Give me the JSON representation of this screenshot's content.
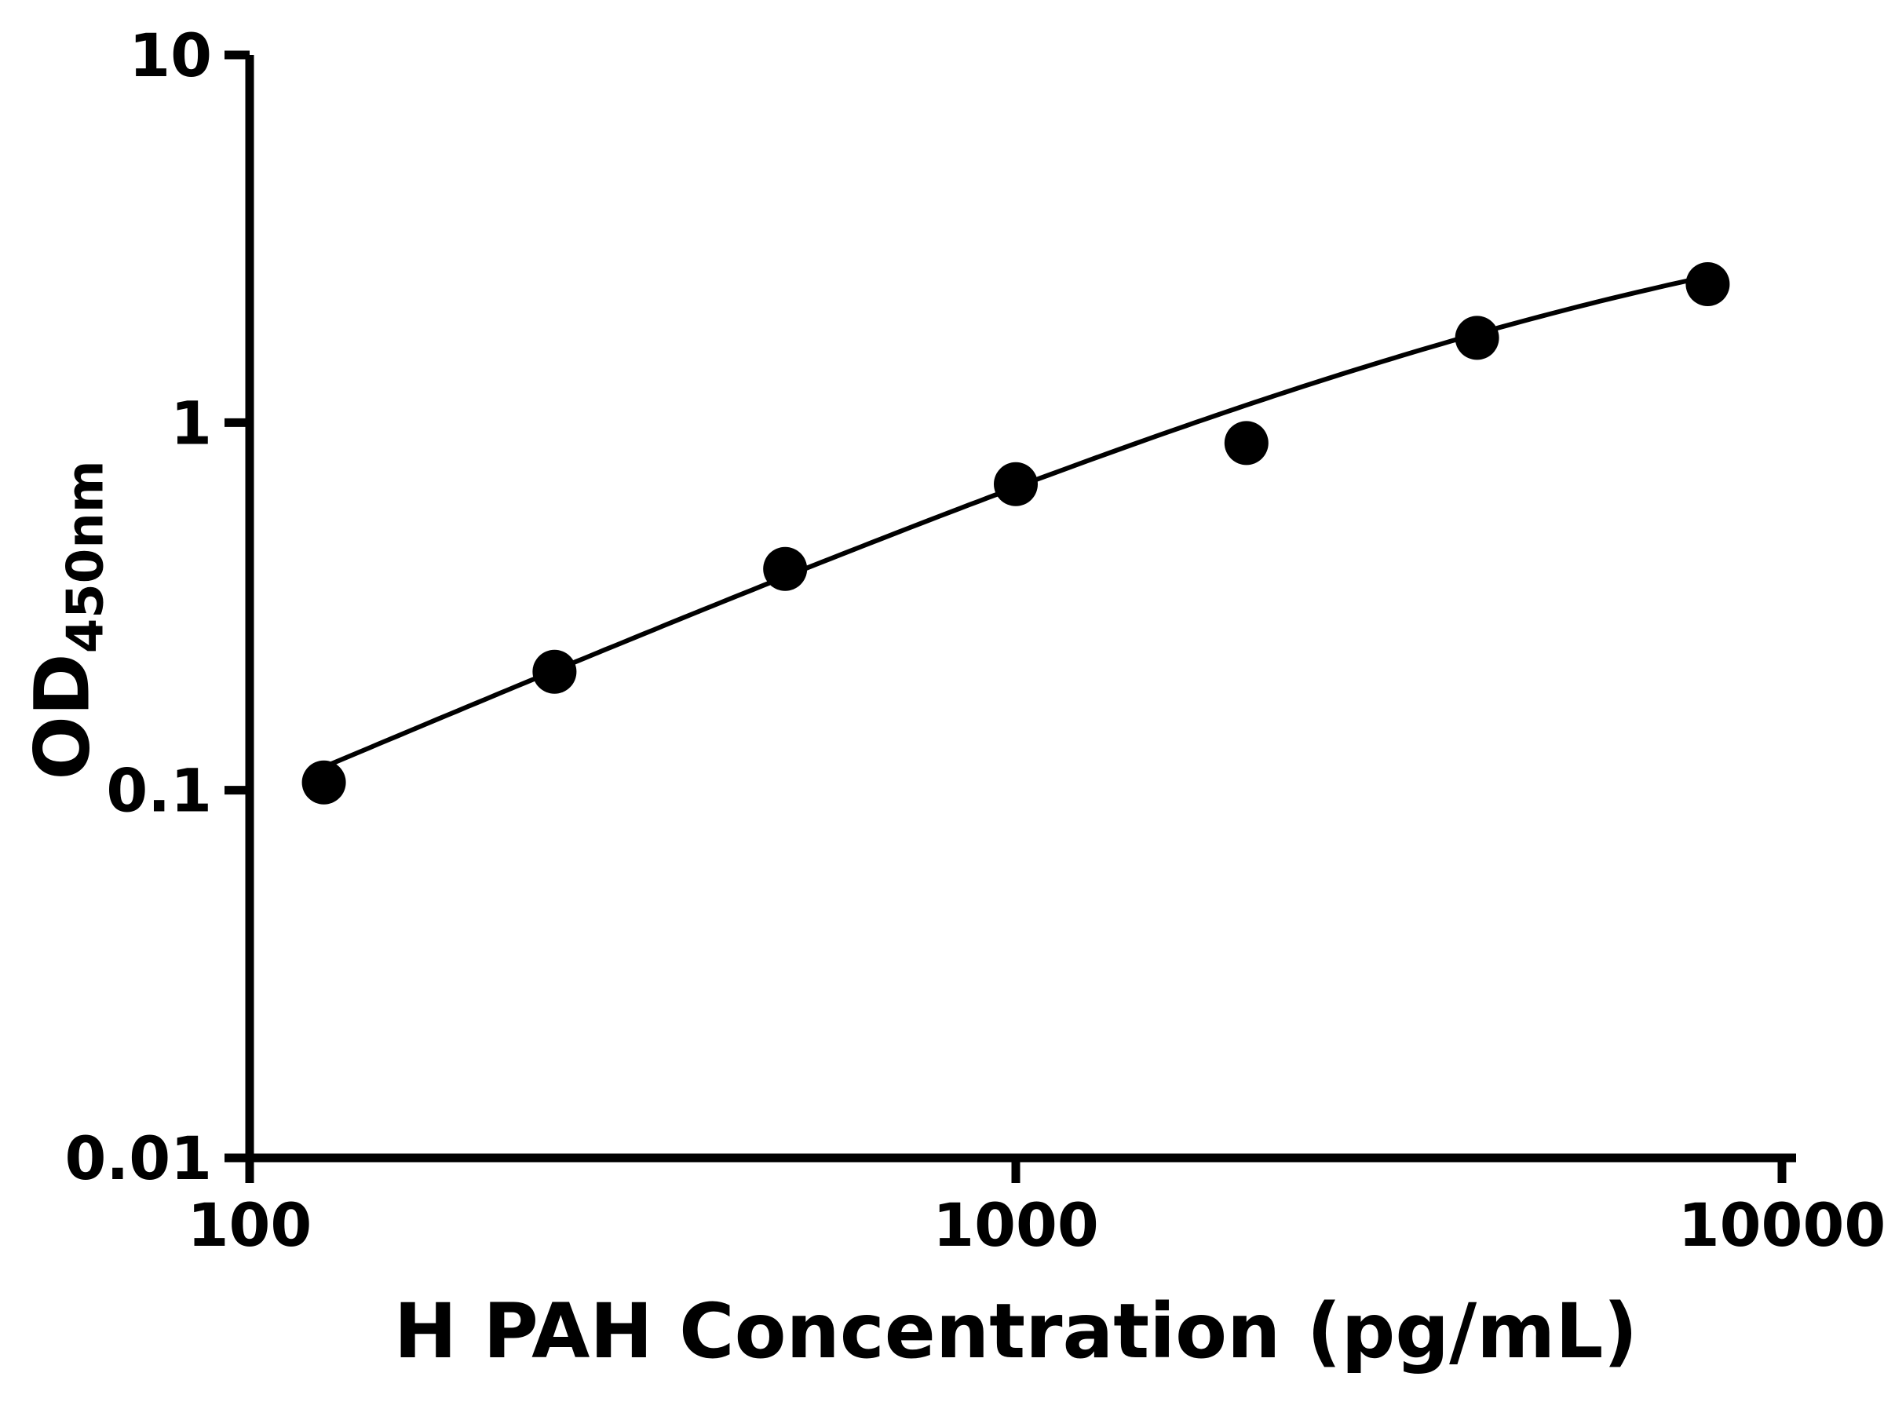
{
  "page": {
    "background": "#ffffff",
    "foreground": "#000000"
  },
  "chart_data": {
    "type": "scatter",
    "title": "",
    "xlabel": "H PAH Concentration (pg/mL)",
    "ylabel_main": "OD",
    "ylabel_sub": "450nm",
    "x_scale": "log",
    "y_scale": "log",
    "xlim": [
      100,
      10000
    ],
    "ylim": [
      0.01,
      10
    ],
    "grid": false,
    "legend": "none",
    "x_ticks": [
      {
        "value": 100,
        "label": "100"
      },
      {
        "value": 1000,
        "label": "1000"
      },
      {
        "value": 10000,
        "label": "10000"
      }
    ],
    "y_ticks": [
      {
        "value": 0.01,
        "label": "0.01"
      },
      {
        "value": 0.1,
        "label": "0.1"
      },
      {
        "value": 1,
        "label": "1"
      },
      {
        "value": 10,
        "label": "10"
      }
    ],
    "points": [
      {
        "x": 125,
        "y": 0.105
      },
      {
        "x": 250,
        "y": 0.21
      },
      {
        "x": 500,
        "y": 0.4
      },
      {
        "x": 1000,
        "y": 0.68
      },
      {
        "x": 2000,
        "y": 0.88
      },
      {
        "x": 4000,
        "y": 1.7
      },
      {
        "x": 8000,
        "y": 2.38
      }
    ],
    "fit_curve": {
      "model": "4pl",
      "bottom": 0,
      "top": 5,
      "ec50": 8000,
      "hill": 0.9,
      "x_start": 127,
      "x_end": 8000
    },
    "marker": {
      "shape": "circle",
      "color": "#000000",
      "radius": 28
    },
    "line": {
      "color": "#000000",
      "width": 6
    },
    "axis": {
      "color": "#000000",
      "width": 11,
      "tick_length": 32
    }
  }
}
